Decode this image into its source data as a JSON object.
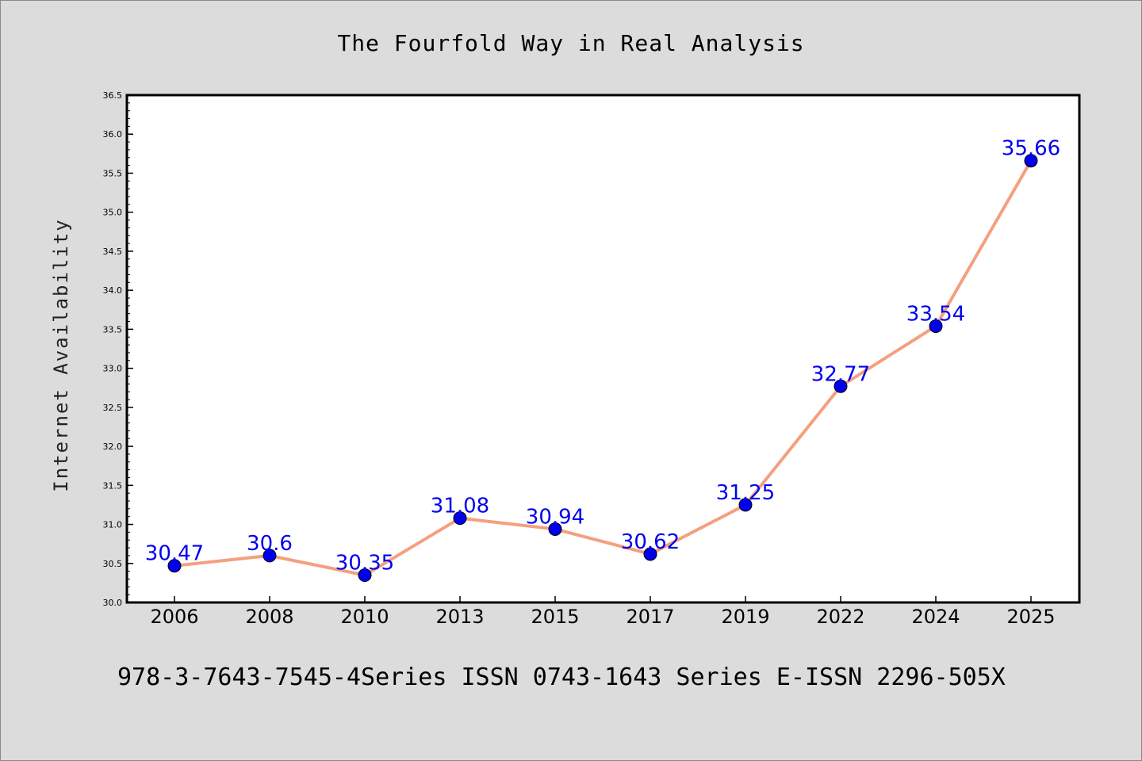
{
  "chart_data": {
    "type": "line",
    "title": "The Fourfold Way in Real Analysis",
    "xlabel": "",
    "ylabel": "Internet Availability",
    "categories": [
      "2006",
      "2008",
      "2010",
      "2013",
      "2015",
      "2017",
      "2019",
      "2022",
      "2024",
      "2025"
    ],
    "series": [
      {
        "values": [
          30.47,
          30.6,
          30.35,
          31.08,
          30.94,
          30.62,
          31.25,
          32.77,
          33.54,
          35.66
        ],
        "labels": [
          "30.47",
          "30.6",
          "30.35",
          "31.08",
          "30.94",
          "30.62",
          "31.25",
          "32.77",
          "33.54",
          "35.66"
        ],
        "line_color": "#f4a07f",
        "marker_color": "#0000ee",
        "label_color": "#0000ee"
      }
    ],
    "ylim": [
      30.0,
      36.5
    ],
    "yticks": [
      "30.0",
      "30.5",
      "31.0",
      "31.5",
      "32.0",
      "32.5",
      "33.0",
      "33.5",
      "34.0",
      "34.5",
      "35.0",
      "35.5",
      "36.0",
      "36.5"
    ],
    "grid": false,
    "legend": "none"
  },
  "footer": "978-3-7643-7545-4Series ISSN 0743-1643 Series E-ISSN 2296-505X",
  "colors": {
    "background": "#dcdcdc",
    "plot_background": "#ffffff",
    "axis": "#000000"
  }
}
